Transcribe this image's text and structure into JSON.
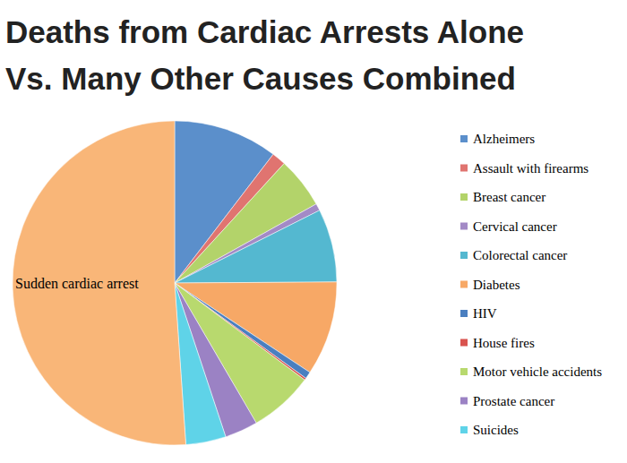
{
  "chart_data": {
    "type": "pie",
    "title": "Deaths from Cardiac Arrests Alone\nVs. Many Other Causes Combined",
    "categories": [
      "Alzheimers",
      "Assault with firearms",
      "Breast cancer",
      "Cervical cancer",
      "Colorectal cancer",
      "Diabetes",
      "HIV",
      "House fires",
      "Motor vehicle accidents",
      "Prostate cancer",
      "Suicides",
      "Sudden cardiac arrest"
    ],
    "values": [
      10.4,
      1.4,
      5.1,
      0.7,
      7.3,
      9.4,
      0.7,
      0.2,
      6.4,
      3.3,
      4.0,
      51.1
    ],
    "colors": [
      "#5b8fcb",
      "#e07470",
      "#b3d36a",
      "#a38ac6",
      "#54b8d0",
      "#f7a866",
      "#4a7fc0",
      "#d9534f",
      "#b8d96e",
      "#9b82c4",
      "#5fd3e8",
      "#f9b678"
    ],
    "legend": "right"
  }
}
